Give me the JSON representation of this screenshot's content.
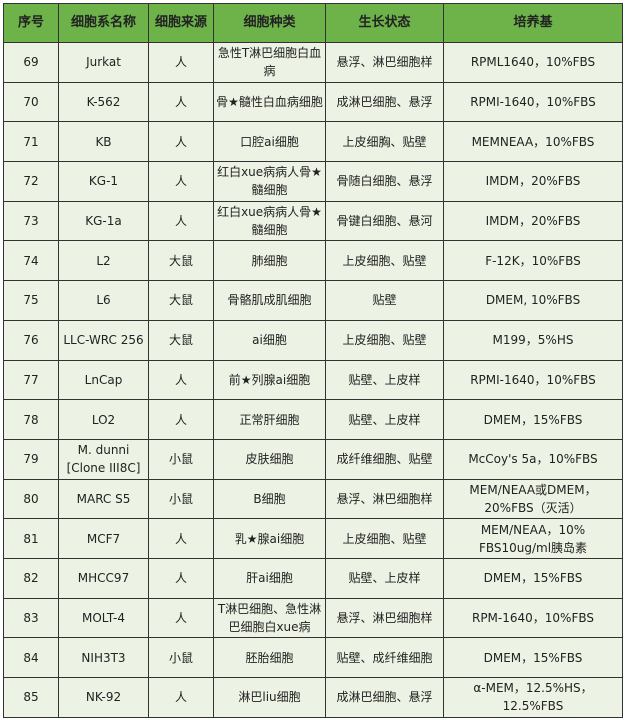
{
  "colors": {
    "header_bg": "#6db34a",
    "body_bg": "#edf3e4",
    "border": "#333333"
  },
  "headers": [
    "序号",
    "细胞系名称",
    "细胞来源",
    "细胞种类",
    "生长状态",
    "培养基"
  ],
  "rows": [
    [
      "69",
      "Jurkat",
      "人",
      "急性T淋巴细胞白血病",
      "悬浮、淋巴细胞样",
      "RPML1640，10%FBS"
    ],
    [
      "70",
      "K-562",
      "人",
      "骨★髓性白血病细胞",
      "成淋巴细胞、悬浮",
      "RPMI-1640，10%FBS"
    ],
    [
      "71",
      "KB",
      "人",
      "口腔ai细胞",
      "上皮细胸、贴壁",
      "MEMNEAA，10%FBS"
    ],
    [
      "72",
      "KG-1",
      "人",
      "红白xue病病人骨★髓细胞",
      "骨随白细胞、悬浮",
      "IMDM，20%FBS"
    ],
    [
      "73",
      "KG-1a",
      "人",
      "红白xue病病人骨★髓细胞",
      "骨键白细胞、悬河",
      "IMDM，20%FBS"
    ],
    [
      "74",
      "L2",
      "大鼠",
      "肺细胞",
      "上皮细胞、贴壁",
      "F-12K，10%FBS"
    ],
    [
      "75",
      "L6",
      "大鼠",
      "骨骼肌成肌细胞",
      "贴壁",
      "DMEM, 10%FBS"
    ],
    [
      "76",
      "LLC-WRC 256",
      "大鼠",
      "ai细胞",
      "上皮细胞、贴壁",
      "M199，5%HS"
    ],
    [
      "77",
      "LnCap",
      "人",
      "前★列腺ai细胞",
      "贴壁、上皮样",
      "RPMI-1640，10%FBS"
    ],
    [
      "78",
      "LO2",
      "人",
      "正常肝细胞",
      "贴壁、上皮样",
      "DMEM，15%FBS"
    ],
    [
      "79",
      "M. dunni [Clone III8C]",
      "小鼠",
      "皮肤细胞",
      "成纤维细胞、贴壁",
      "McCoy's 5a，10%FBS"
    ],
    [
      "80",
      "MARC S5",
      "小鼠",
      "B细胞",
      "悬浮、淋巴细胞样",
      "MEM/NEAA或DMEM，20%FBS（灭活）"
    ],
    [
      "81",
      "MCF7",
      "人",
      "乳★腺ai细胞",
      "上皮细胞、贴壁",
      "MEM/NEAA，10% FBS10ug/ml胰岛素"
    ],
    [
      "82",
      "MHCC97",
      "人",
      "肝ai细胞",
      "贴壁、上皮样",
      "DMEM，15%FBS"
    ],
    [
      "83",
      "MOLT-4",
      "人",
      "T淋巴细胞、急性淋巴细胞白xue病",
      "悬浮、淋巴细胞样",
      "RPM-1640，10%FBS"
    ],
    [
      "84",
      "NIH3T3",
      "小鼠",
      "胚胎细胞",
      "贴壁、成纤维细胞",
      "DMEM，15%FBS"
    ],
    [
      "85",
      "NK-92",
      "人",
      "淋巴liu细胞",
      "成淋巴细胞、悬浮",
      "α-MEM，12.5%HS，12.5%FBS"
    ]
  ]
}
